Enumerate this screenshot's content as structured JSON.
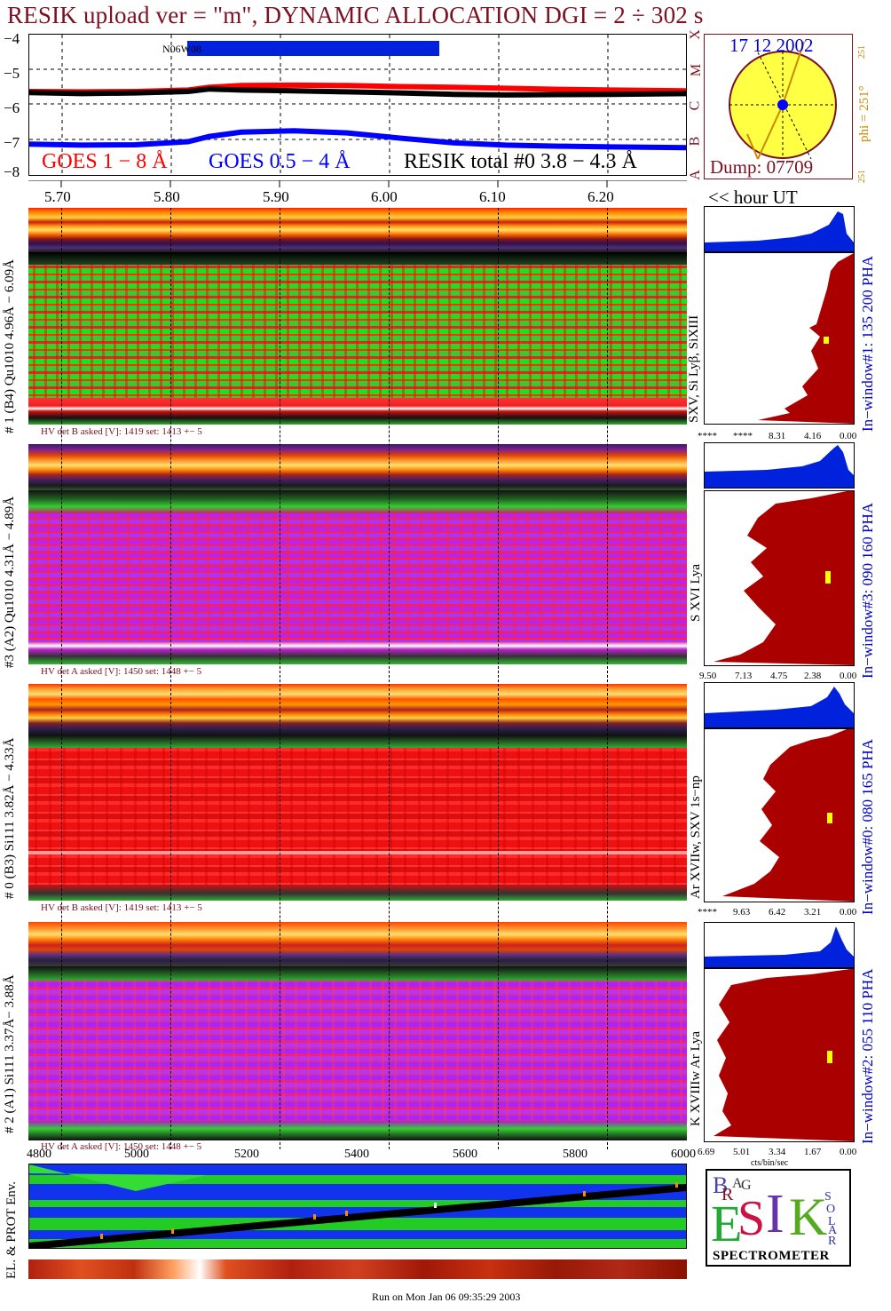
{
  "header": {
    "title": "RESIK upload ver = \"m\", DYNAMIC ALLOCATION  DGI =   2 ÷ 302 s"
  },
  "goes": {
    "ytick_labels": [
      "−4",
      "−5",
      "−6",
      "−7",
      "−8"
    ],
    "class_letters": [
      "X",
      "M",
      "C",
      "B",
      "A"
    ],
    "bar_label": "N06W08",
    "legend": {
      "goes_long": "GOES 1 − 8 Å",
      "goes_short": "GOES 0.5 − 4 Å",
      "resik_total": "RESIK total #0  3.8 − 4.3 Å"
    },
    "colors": {
      "goes_long": "#ff0000",
      "goes_short": "#0000ff",
      "resik_total": "#000000"
    }
  },
  "time_axis": {
    "labels": [
      "5.70",
      "5.80",
      "5.90",
      "6.00",
      "6.10",
      "6.20"
    ],
    "unit_label": "<< hour UT"
  },
  "sun": {
    "date": "17 12 2002",
    "dump": "Dump: 07709",
    "phi_label": "phi = 251°",
    "phi_small_top": "251",
    "phi_small_bottom": "251"
  },
  "panels": [
    {
      "side_label": "# 1 (B4) Qu1010 4.96Å − 6.09Å",
      "lines_label": "SXV, Si Lyβ, SiXIII",
      "window_label": "In−window#1:  135 200 PHA",
      "hv_label": "HV det B asked [V]:  1419 set:  1413  +−   5",
      "hist_ticks": [
        "****",
        "****",
        "8.31",
        "4.16",
        "0.00"
      ]
    },
    {
      "side_label": "#3 (A2) Qu1010  4.31Å − 4.89Å",
      "lines_label": "S XVI Lya",
      "window_label": "In−window#3:  090 160 PHA",
      "hv_label": "HV det A asked [V]:  1450 set:  1448  +−   5",
      "hist_ticks": [
        "9.50",
        "7.13",
        "4.75",
        "2.38",
        "0.00"
      ]
    },
    {
      "side_label": "# 0 (B3) Si111  3.82Å − 4.33Å",
      "lines_label": "Ar XVIIw,  SXV 1s−np",
      "window_label": "In−window#0:  080 165 PHA",
      "hv_label": "HV det B asked [V]:  1419 set:  1413  +−   5",
      "hist_ticks": [
        "****",
        "9.63",
        "6.42",
        "3.21",
        "0.00"
      ]
    },
    {
      "side_label": "# 2 (A1) Si111  3.37Å− 3.88Å",
      "lines_label": "K XVIIIw  Ar Lya",
      "window_label": "In−window#2:  055 110 PHA",
      "hv_label": "HV det A asked [V]:  1450 set:  1448  +−   5",
      "hist_ticks": [
        "6.69",
        "5.01",
        "3.34",
        "1.67",
        "0.00"
      ]
    }
  ],
  "hist_unit": "cts/bin/sec",
  "env": {
    "xtick_labels": [
      "4800",
      "5000",
      "5200",
      "5400",
      "5600",
      "5800",
      "6000"
    ],
    "side_label": "EL. & PROT Env."
  },
  "logo": {
    "letters": [
      "B",
      "R",
      "A",
      "G",
      "E",
      "S",
      "I",
      "K",
      "S",
      "O",
      "L",
      "A",
      "R"
    ],
    "caption": "SPECTROMETER"
  },
  "footer": {
    "run_text": "Run on Mon Jan 06 09:35:29 2003"
  },
  "chart_data": [
    {
      "type": "line",
      "title": "",
      "ylim": [
        -8,
        -4
      ],
      "xlim": [
        5.65,
        6.27
      ],
      "series": [
        {
          "name": "GOES 1 − 8 Å",
          "x": [
            5.65,
            5.7,
            5.75,
            5.8,
            5.82,
            5.85,
            5.9,
            5.95,
            6.0,
            6.05,
            6.1,
            6.15,
            6.2,
            6.27
          ],
          "y": [
            -5.62,
            -5.63,
            -5.62,
            -5.58,
            -5.5,
            -5.45,
            -5.44,
            -5.45,
            -5.48,
            -5.5,
            -5.53,
            -5.56,
            -5.58,
            -5.6
          ]
        },
        {
          "name": "GOES 0.5 − 4 Å",
          "x": [
            5.65,
            5.7,
            5.75,
            5.8,
            5.82,
            5.85,
            5.9,
            5.95,
            6.0,
            6.05,
            6.1,
            6.15,
            6.2,
            6.27
          ],
          "y": [
            -7.12,
            -7.15,
            -7.14,
            -7.05,
            -6.9,
            -6.78,
            -6.74,
            -6.8,
            -6.95,
            -7.08,
            -7.15,
            -7.18,
            -7.2,
            -7.22
          ]
        },
        {
          "name": "RESIK total #0  3.8 − 4.3 Å",
          "x": [
            5.65,
            5.7,
            5.75,
            5.8,
            5.82,
            5.85,
            5.9,
            5.95,
            6.0,
            6.05,
            6.1,
            6.15,
            6.2,
            6.27
          ],
          "y": [
            -5.65,
            -5.68,
            -5.66,
            -5.62,
            -5.55,
            -5.58,
            -5.6,
            -5.63,
            -5.66,
            -5.7,
            -5.72,
            -5.71,
            -5.7,
            -5.68
          ]
        }
      ]
    },
    {
      "type": "area",
      "title": "",
      "xlim": [
        4800,
        6000
      ]
    }
  ]
}
